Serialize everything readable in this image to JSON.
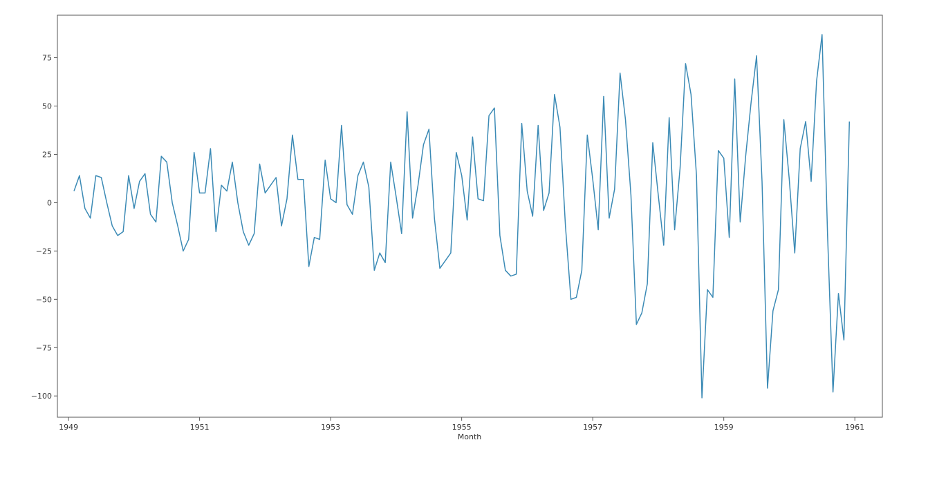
{
  "chart_data": {
    "type": "line",
    "title": "",
    "xlabel": "Month",
    "ylabel": "",
    "grid": false,
    "legend": "none",
    "xlim": [
      1948.83,
      1961.42
    ],
    "ylim": [
      -111,
      97
    ],
    "x_ticks": [
      1949,
      1951,
      1953,
      1955,
      1957,
      1959,
      1961
    ],
    "x_tick_labels": [
      "1949",
      "1951",
      "1953",
      "1955",
      "1957",
      "1959",
      "1961"
    ],
    "y_ticks": [
      75,
      50,
      25,
      0,
      -25,
      -50,
      -75,
      -100
    ],
    "y_tick_labels": [
      "75",
      "50",
      "25",
      "0",
      "−25",
      "−50",
      "−75",
      "−100"
    ],
    "line_color": "#3b8ab5",
    "series": [
      {
        "x_start": "1949-02",
        "x_end": "1960-12",
        "frequency": "monthly",
        "values": [
          6,
          14,
          -3,
          -8,
          14,
          13,
          0,
          -12,
          -17,
          -15,
          14,
          -3,
          11,
          15,
          -6,
          -10,
          24,
          21,
          0,
          -12,
          -25,
          -19,
          26,
          5,
          5,
          28,
          -15,
          9,
          6,
          21,
          0,
          -15,
          -22,
          -16,
          20,
          5,
          9,
          13,
          -12,
          2,
          35,
          12,
          12,
          -33,
          -18,
          -19,
          22,
          2,
          0,
          40,
          -1,
          -6,
          14,
          21,
          8,
          -35,
          -26,
          -31,
          21,
          3,
          -16,
          47,
          -8,
          9,
          30,
          38,
          -8,
          -34,
          -30,
          -26,
          26,
          14,
          -9,
          34,
          2,
          1,
          45,
          49,
          -17,
          -35,
          -38,
          -37,
          41,
          6,
          -7,
          40,
          -4,
          5,
          56,
          39,
          -12,
          -50,
          -49,
          -35,
          35,
          12,
          -14,
          55,
          -8,
          7,
          67,
          43,
          4,
          -63,
          -57,
          -42,
          31,
          4,
          -22,
          44,
          -14,
          18,
          72,
          56,
          14,
          -101,
          -45,
          -49,
          27,
          23,
          -18,
          64,
          -10,
          24,
          52,
          76,
          11,
          -96,
          -56,
          -45,
          43,
          12,
          -26,
          28,
          42,
          11,
          63,
          87,
          -16,
          -98,
          -47,
          -71,
          42
        ]
      }
    ]
  }
}
